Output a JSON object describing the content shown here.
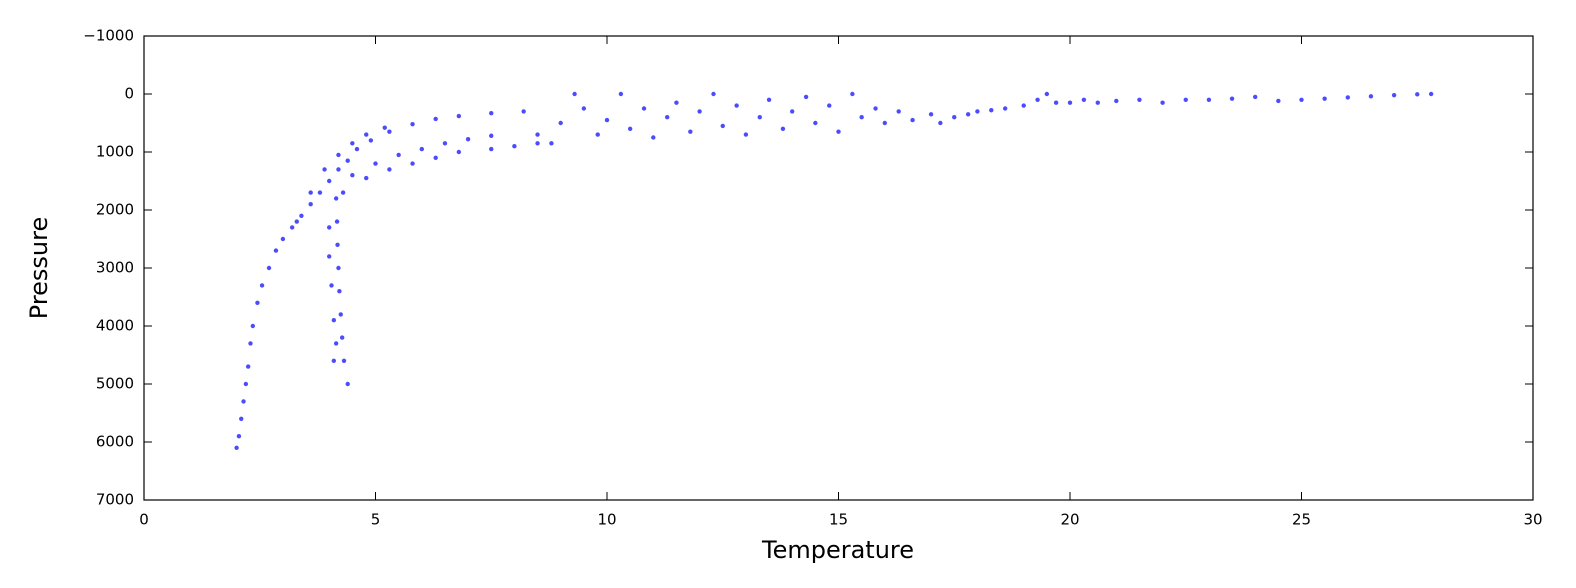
{
  "chart_data": {
    "type": "scatter",
    "x_label": "Temperature",
    "y_label": "Pressure",
    "color": "#0000ff",
    "inverted_y": true,
    "xlim": [
      0,
      30
    ],
    "xticks": [
      0,
      5,
      10,
      15,
      20,
      25,
      30
    ],
    "ylim": [
      7000,
      -1000
    ],
    "yticks": [
      {
        "value": -1000,
        "label": "−1000"
      },
      0,
      1000,
      2000,
      3000,
      4000,
      5000,
      6000,
      7000
    ],
    "x": [
      2.0,
      2.05,
      2.1,
      2.15,
      2.2,
      2.25,
      2.3,
      2.35,
      2.45,
      2.55,
      2.7,
      2.85,
      3.0,
      3.2,
      3.4,
      3.6,
      3.8,
      4.0,
      4.2,
      4.4,
      4.6,
      4.9,
      5.3,
      5.8,
      6.3,
      6.8,
      7.5,
      3.3,
      3.6,
      3.9,
      4.2,
      4.5,
      4.8,
      5.2,
      4.3,
      4.8,
      5.3,
      5.8,
      6.3,
      6.8,
      7.5,
      8.0,
      8.5,
      4.5,
      5.0,
      5.5,
      6.0,
      6.5,
      7.0,
      7.5,
      4.15,
      4.17,
      4.18,
      4.2,
      4.22,
      4.25,
      4.28,
      4.32,
      4.4,
      4.0,
      4.0,
      4.05,
      4.1,
      4.15,
      4.1,
      8.2,
      8.5,
      8.8,
      9.0,
      9.3,
      9.5,
      9.8,
      10.0,
      10.3,
      10.5,
      10.8,
      11.0,
      11.3,
      11.5,
      11.8,
      12.0,
      12.3,
      12.5,
      12.8,
      13.0,
      13.3,
      13.5,
      13.8,
      14.0,
      14.3,
      14.5,
      14.8,
      15.0,
      15.3,
      15.5,
      15.8,
      16.0,
      16.3,
      16.6,
      17.0,
      17.2,
      17.5,
      17.8,
      18.0,
      18.3,
      18.6,
      19.0,
      19.3,
      19.5,
      19.7,
      20.0,
      20.3,
      20.6,
      21.0,
      21.5,
      22.0,
      22.5,
      23.0,
      23.5,
      24.0,
      24.5,
      25.0,
      25.5,
      26.0,
      26.5,
      27.0,
      27.5,
      27.8
    ],
    "values": [
      6100,
      5900,
      5600,
      5300,
      5000,
      4700,
      4300,
      4000,
      3600,
      3300,
      3000,
      2700,
      2500,
      2300,
      2100,
      1900,
      1700,
      1500,
      1300,
      1150,
      950,
      800,
      650,
      520,
      430,
      380,
      330,
      2200,
      1700,
      1300,
      1050,
      850,
      700,
      580,
      1700,
      1450,
      1300,
      1200,
      1100,
      1000,
      950,
      900,
      850,
      1400,
      1200,
      1050,
      950,
      850,
      780,
      720,
      1800,
      2200,
      2600,
      3000,
      3400,
      3800,
      4200,
      4600,
      5000,
      2300,
      2800,
      3300,
      3900,
      4300,
      4600,
      300,
      700,
      850,
      500,
      0,
      250,
      700,
      450,
      0,
      600,
      250,
      750,
      400,
      150,
      650,
      300,
      0,
      550,
      200,
      700,
      400,
      100,
      600,
      300,
      50,
      500,
      200,
      650,
      0,
      400,
      250,
      500,
      300,
      450,
      350,
      500,
      400,
      350,
      300,
      280,
      250,
      200,
      100,
      0,
      150,
      150,
      100,
      150,
      120,
      100,
      150,
      100,
      100,
      80,
      50,
      120,
      100,
      80,
      60,
      40,
      20,
      5,
      0
    ]
  }
}
